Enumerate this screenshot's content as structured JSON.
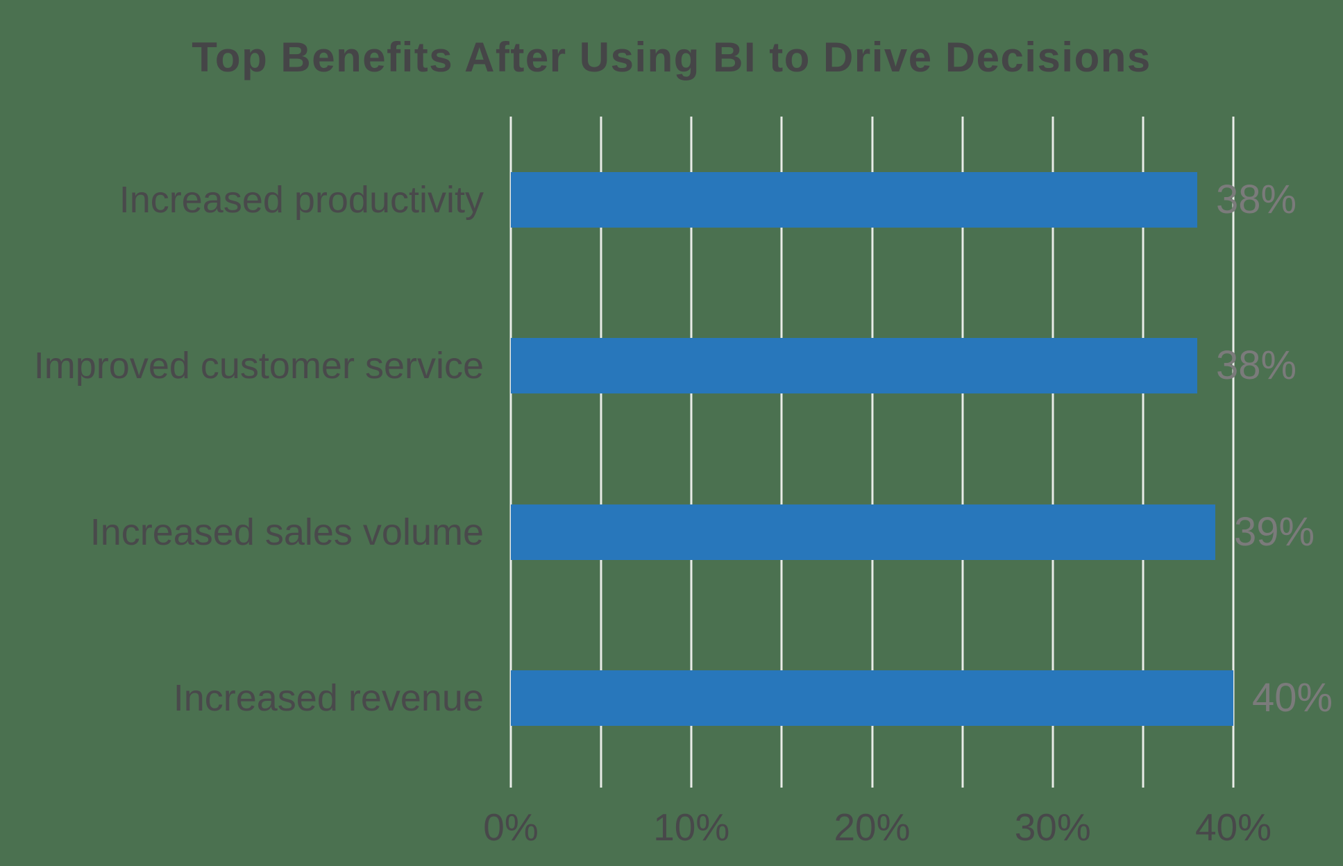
{
  "title": "Top Benefits After Using BI to Drive Decisions",
  "chart_data": {
    "type": "bar",
    "orientation": "horizontal",
    "title": "Top Benefits After Using BI to Drive Decisions",
    "categories": [
      "Increased productivity",
      "Improved customer service",
      "Increased sales volume",
      "Increased revenue"
    ],
    "values": [
      38,
      38,
      39,
      40
    ],
    "value_labels": [
      "38%",
      "38%",
      "39%",
      "40%"
    ],
    "x_ticks": [
      0,
      10,
      20,
      30,
      40
    ],
    "x_tick_labels": [
      "0%",
      "10%",
      "20%",
      "30%",
      "40%"
    ],
    "xlim": [
      0,
      40
    ],
    "grid_step": 5,
    "grid": true,
    "legend": false,
    "xlabel": "",
    "ylabel": "",
    "colors": {
      "background": "#4B7150",
      "bar": "#2877BB",
      "gridline": "#E9ECE8",
      "category_text": "#49494B",
      "axis_text": "#48484A",
      "value_text": "#7B7B7B",
      "title_text": "#454547"
    }
  }
}
